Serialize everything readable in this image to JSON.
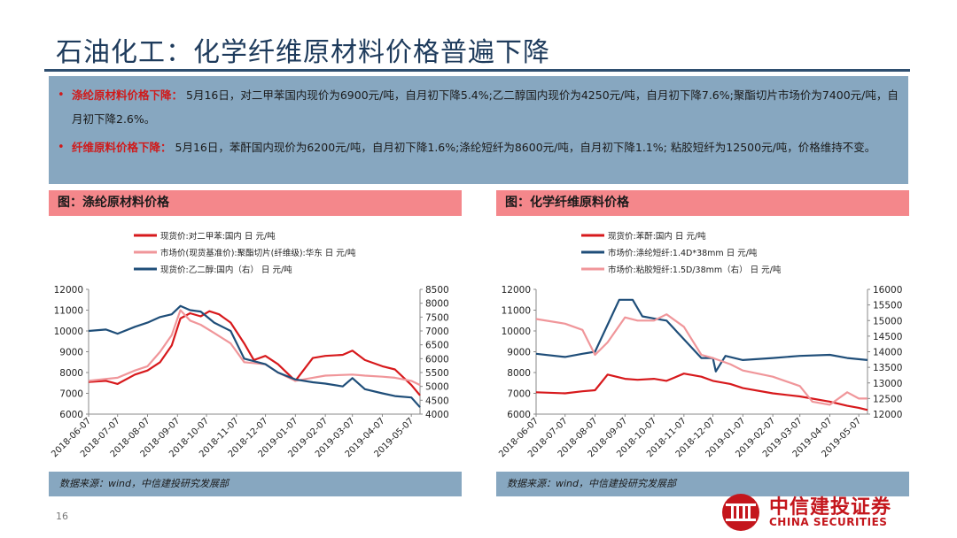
{
  "title": "石油化工：化学纤维原材料价格普遍下降",
  "summary": [
    {
      "head": "涤纶原材料价格下降：",
      "text": " 5月16日，对二甲苯国内现价为6900元/吨，自月初下降5.4%;乙二醇国内现价为4250元/吨，自月初下降7.6%;聚酯切片市场价为7400元/吨，自月初下降2.6%。"
    },
    {
      "head": "纤维原料价格下降：",
      "text": " 5月16日，苯酐国内现价为6200元/吨，自月初下降1.6%;涤纶短纤为8600元/吨，自月初下降1.1%; 粘胶短纤为12500元/吨，价格维持不变。"
    }
  ],
  "panels": [
    {
      "title": "图：涤纶原材料价格",
      "source": "数据来源：wind，中信建投研究发展部"
    },
    {
      "title": "图：化学纤维原料价格",
      "source": "数据来源：wind，中信建投研究发展部"
    }
  ],
  "page_number": "16",
  "logo": {
    "cn": "中信建投证券",
    "en": "CHINA SECURITIES"
  },
  "chart_data": [
    {
      "type": "line",
      "x_ticks": [
        "2018-06-07",
        "2018-07-07",
        "2018-08-07",
        "2018-09-07",
        "2018-10-07",
        "2018-11-07",
        "2018-12-07",
        "2019-01-07",
        "2019-02-07",
        "2019-03-07",
        "2019-04-07",
        "2019-05-07"
      ],
      "x_range": [
        "2018-06-07",
        "2019-05-16"
      ],
      "y_left": {
        "min": 6000,
        "max": 12000,
        "ticks": [
          6000,
          7000,
          8000,
          9000,
          10000,
          11000,
          12000
        ]
      },
      "y_right": {
        "min": 4000,
        "max": 8500,
        "ticks": [
          4000,
          4500,
          5000,
          5500,
          6000,
          6500,
          7000,
          7500,
          8000,
          8500
        ]
      },
      "legend_position": "top",
      "series": [
        {
          "name": "现货价:对二甲苯:国内 日 元/吨",
          "color": "#d7191c",
          "axis": "left",
          "points": [
            [
              "2018-06-07",
              7550
            ],
            [
              "2018-06-25",
              7600
            ],
            [
              "2018-07-07",
              7450
            ],
            [
              "2018-07-25",
              7900
            ],
            [
              "2018-08-07",
              8100
            ],
            [
              "2018-08-20",
              8500
            ],
            [
              "2018-09-01",
              9300
            ],
            [
              "2018-09-10",
              10600
            ],
            [
              "2018-09-20",
              10850
            ],
            [
              "2018-10-01",
              10700
            ],
            [
              "2018-10-10",
              10950
            ],
            [
              "2018-10-20",
              10800
            ],
            [
              "2018-11-01",
              10400
            ],
            [
              "2018-11-15",
              9400
            ],
            [
              "2018-11-25",
              8600
            ],
            [
              "2018-12-07",
              8800
            ],
            [
              "2018-12-20",
              8400
            ],
            [
              "2019-01-07",
              7600
            ],
            [
              "2019-01-25",
              8700
            ],
            [
              "2019-02-07",
              8800
            ],
            [
              "2019-02-25",
              8850
            ],
            [
              "2019-03-07",
              9050
            ],
            [
              "2019-03-20",
              8600
            ],
            [
              "2019-04-07",
              8300
            ],
            [
              "2019-04-20",
              8150
            ],
            [
              "2019-05-07",
              7400
            ],
            [
              "2019-05-16",
              6900
            ]
          ]
        },
        {
          "name": "市场价(现货基准价):聚酯切片(纤维级):华东 日 元/吨",
          "color": "#f0969a",
          "axis": "left",
          "points": [
            [
              "2018-06-07",
              7600
            ],
            [
              "2018-07-07",
              7750
            ],
            [
              "2018-07-25",
              8100
            ],
            [
              "2018-08-07",
              8300
            ],
            [
              "2018-08-20",
              9000
            ],
            [
              "2018-09-01",
              9800
            ],
            [
              "2018-09-10",
              11000
            ],
            [
              "2018-09-20",
              10500
            ],
            [
              "2018-10-01",
              10300
            ],
            [
              "2018-10-15",
              9900
            ],
            [
              "2018-11-01",
              9400
            ],
            [
              "2018-11-15",
              8500
            ],
            [
              "2018-12-07",
              8400
            ],
            [
              "2018-12-20",
              8000
            ],
            [
              "2019-01-07",
              7600
            ],
            [
              "2019-01-25",
              7750
            ],
            [
              "2019-02-07",
              7850
            ],
            [
              "2019-03-07",
              7900
            ],
            [
              "2019-03-20",
              7850
            ],
            [
              "2019-04-07",
              7800
            ],
            [
              "2019-04-20",
              7750
            ],
            [
              "2019-05-07",
              7600
            ],
            [
              "2019-05-16",
              7400
            ]
          ]
        },
        {
          "name": "现货价:乙二醇:国内（右） 日 元/吨",
          "color": "#1f4e79",
          "axis": "right",
          "points": [
            [
              "2018-06-07",
              7000
            ],
            [
              "2018-06-25",
              7050
            ],
            [
              "2018-07-07",
              6900
            ],
            [
              "2018-07-25",
              7150
            ],
            [
              "2018-08-07",
              7300
            ],
            [
              "2018-08-20",
              7500
            ],
            [
              "2018-09-01",
              7600
            ],
            [
              "2018-09-10",
              7900
            ],
            [
              "2018-09-20",
              7750
            ],
            [
              "2018-10-01",
              7700
            ],
            [
              "2018-10-15",
              7300
            ],
            [
              "2018-11-01",
              7000
            ],
            [
              "2018-11-15",
              6000
            ],
            [
              "2018-12-07",
              5800
            ],
            [
              "2018-12-20",
              5500
            ],
            [
              "2019-01-07",
              5250
            ],
            [
              "2019-01-25",
              5150
            ],
            [
              "2019-02-07",
              5100
            ],
            [
              "2019-02-25",
              5000
            ],
            [
              "2019-03-07",
              5300
            ],
            [
              "2019-03-20",
              4900
            ],
            [
              "2019-04-07",
              4750
            ],
            [
              "2019-04-20",
              4650
            ],
            [
              "2019-05-07",
              4600
            ],
            [
              "2019-05-16",
              4250
            ]
          ]
        }
      ]
    },
    {
      "type": "line",
      "x_ticks": [
        "2018-06-07",
        "2018-07-07",
        "2018-08-07",
        "2018-09-07",
        "2018-10-07",
        "2018-11-07",
        "2018-12-07",
        "2019-01-07",
        "2019-02-07",
        "2019-03-07",
        "2019-04-07",
        "2019-05-07"
      ],
      "x_range": [
        "2018-06-07",
        "2019-05-16"
      ],
      "y_left": {
        "min": 6000,
        "max": 12000,
        "ticks": [
          6000,
          7000,
          8000,
          9000,
          10000,
          11000,
          12000
        ]
      },
      "y_right": {
        "min": 12000,
        "max": 16000,
        "ticks": [
          12000,
          12500,
          13000,
          13500,
          14000,
          14500,
          15000,
          15500,
          16000
        ]
      },
      "legend_position": "top",
      "series": [
        {
          "name": "现货价:苯酐:国内 日 元/吨",
          "color": "#d7191c",
          "axis": "left",
          "points": [
            [
              "2018-06-07",
              7050
            ],
            [
              "2018-07-07",
              7000
            ],
            [
              "2018-07-25",
              7100
            ],
            [
              "2018-08-07",
              7150
            ],
            [
              "2018-08-20",
              7900
            ],
            [
              "2018-09-07",
              7700
            ],
            [
              "2018-09-20",
              7650
            ],
            [
              "2018-10-07",
              7700
            ],
            [
              "2018-10-20",
              7600
            ],
            [
              "2018-11-07",
              7950
            ],
            [
              "2018-11-25",
              7800
            ],
            [
              "2018-12-07",
              7600
            ],
            [
              "2018-12-25",
              7450
            ],
            [
              "2019-01-07",
              7250
            ],
            [
              "2019-02-07",
              7000
            ],
            [
              "2019-03-07",
              6850
            ],
            [
              "2019-04-07",
              6600
            ],
            [
              "2019-04-25",
              6400
            ],
            [
              "2019-05-07",
              6300
            ],
            [
              "2019-05-16",
              6200
            ]
          ]
        },
        {
          "name": "市场价:涤纶短纤:1.4D*38mm 日 元/吨",
          "color": "#1f4e79",
          "axis": "left",
          "points": [
            [
              "2018-06-07",
              8900
            ],
            [
              "2018-07-07",
              8750
            ],
            [
              "2018-07-25",
              8900
            ],
            [
              "2018-08-07",
              9000
            ],
            [
              "2018-08-20",
              10300
            ],
            [
              "2018-09-01",
              11500
            ],
            [
              "2018-09-15",
              11500
            ],
            [
              "2018-09-25",
              10700
            ],
            [
              "2018-10-07",
              10600
            ],
            [
              "2018-10-20",
              10500
            ],
            [
              "2018-11-07",
              9600
            ],
            [
              "2018-11-25",
              8700
            ],
            [
              "2018-12-07",
              8700
            ],
            [
              "2018-12-10",
              8050
            ],
            [
              "2018-12-20",
              8800
            ],
            [
              "2019-01-07",
              8600
            ],
            [
              "2019-02-07",
              8700
            ],
            [
              "2019-03-07",
              8800
            ],
            [
              "2019-04-07",
              8850
            ],
            [
              "2019-04-25",
              8700
            ],
            [
              "2019-05-16",
              8600
            ]
          ]
        },
        {
          "name": "市场价:粘胶短纤:1.5D/38mm（右） 日 元/吨",
          "color": "#f0969a",
          "axis": "right",
          "points": [
            [
              "2018-06-07",
              15050
            ],
            [
              "2018-07-07",
              14900
            ],
            [
              "2018-07-25",
              14700
            ],
            [
              "2018-08-07",
              13900
            ],
            [
              "2018-08-20",
              14300
            ],
            [
              "2018-09-07",
              15100
            ],
            [
              "2018-09-20",
              15000
            ],
            [
              "2018-10-07",
              15000
            ],
            [
              "2018-10-20",
              15200
            ],
            [
              "2018-11-07",
              14800
            ],
            [
              "2018-11-25",
              13900
            ],
            [
              "2018-12-07",
              13800
            ],
            [
              "2018-12-25",
              13600
            ],
            [
              "2019-01-07",
              13400
            ],
            [
              "2019-02-07",
              13200
            ],
            [
              "2019-03-07",
              12900
            ],
            [
              "2019-03-20",
              12400
            ],
            [
              "2019-04-07",
              12300
            ],
            [
              "2019-04-25",
              12700
            ],
            [
              "2019-05-07",
              12500
            ],
            [
              "2019-05-16",
              12500
            ]
          ]
        }
      ]
    }
  ]
}
